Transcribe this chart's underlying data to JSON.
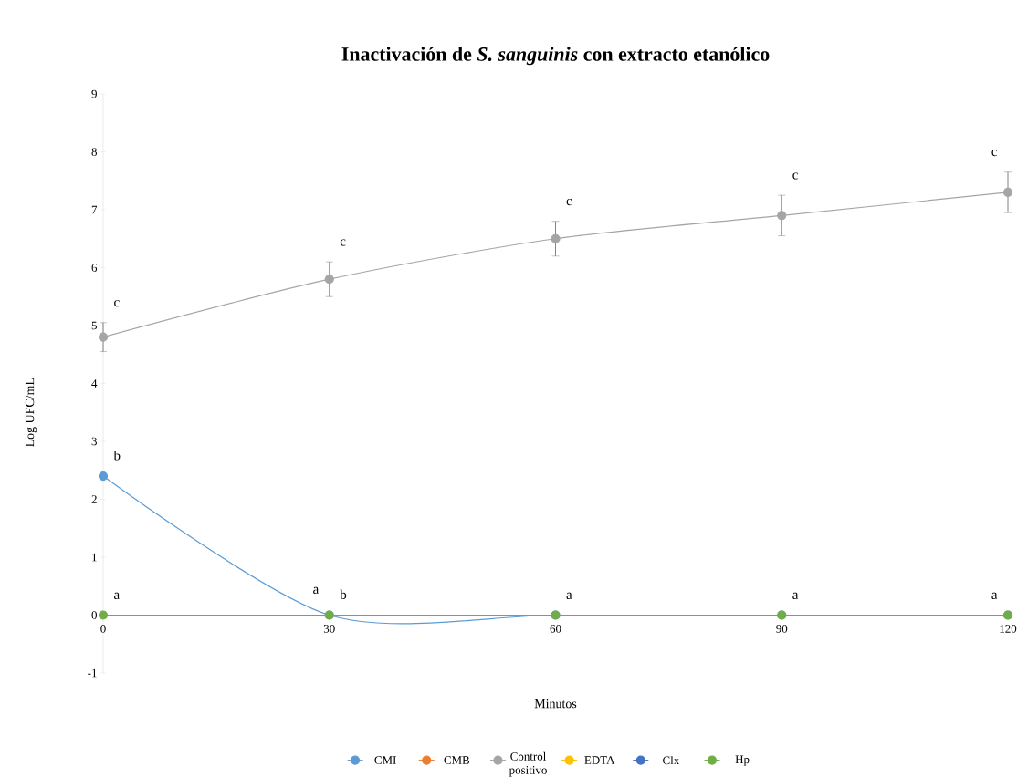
{
  "chart_data": {
    "type": "line",
    "title": "Inactivación de *S. sanguinis* con extracto etanólico",
    "xlabel": "Minutos",
    "ylabel": "Log UFC/mL",
    "x": [
      0,
      30,
      60,
      90,
      120
    ],
    "xlim": [
      0,
      120
    ],
    "xticks": [
      0,
      30,
      60,
      90,
      120
    ],
    "ylim": [
      -1,
      9
    ],
    "yticks": [
      -1,
      0,
      1,
      2,
      3,
      4,
      5,
      6,
      7,
      8,
      9
    ],
    "series": [
      {
        "name": "CMI",
        "color": "#5b9bd5",
        "values": [
          2.4,
          0,
          0,
          0,
          0
        ],
        "value_labels": [
          "b",
          "b",
          null,
          null,
          null
        ]
      },
      {
        "name": "CMB",
        "color": "#ed7d31",
        "values": [
          null,
          null,
          null,
          null,
          null
        ]
      },
      {
        "name": "Control positivo",
        "color": "#a5a5a5",
        "values": [
          4.8,
          5.8,
          6.5,
          6.9,
          7.3
        ],
        "errors": [
          0.25,
          0.3,
          0.3,
          0.35,
          0.35
        ],
        "value_labels": [
          "c",
          "c",
          "c",
          "c",
          "c"
        ]
      },
      {
        "name": "EDTA",
        "color": "#ffc000",
        "values": [
          null,
          null,
          null,
          null,
          null
        ]
      },
      {
        "name": "Clx",
        "color": "#4472c4",
        "values": [
          null,
          null,
          null,
          null,
          null
        ]
      },
      {
        "name": "Hp",
        "color": "#70ad47",
        "values": [
          0,
          0,
          0,
          0,
          0
        ],
        "value_labels": [
          "a",
          "a",
          "a",
          "a",
          "a"
        ]
      }
    ],
    "legend": "bottom",
    "marker": "circle",
    "line_style": "solid",
    "grid": false
  }
}
